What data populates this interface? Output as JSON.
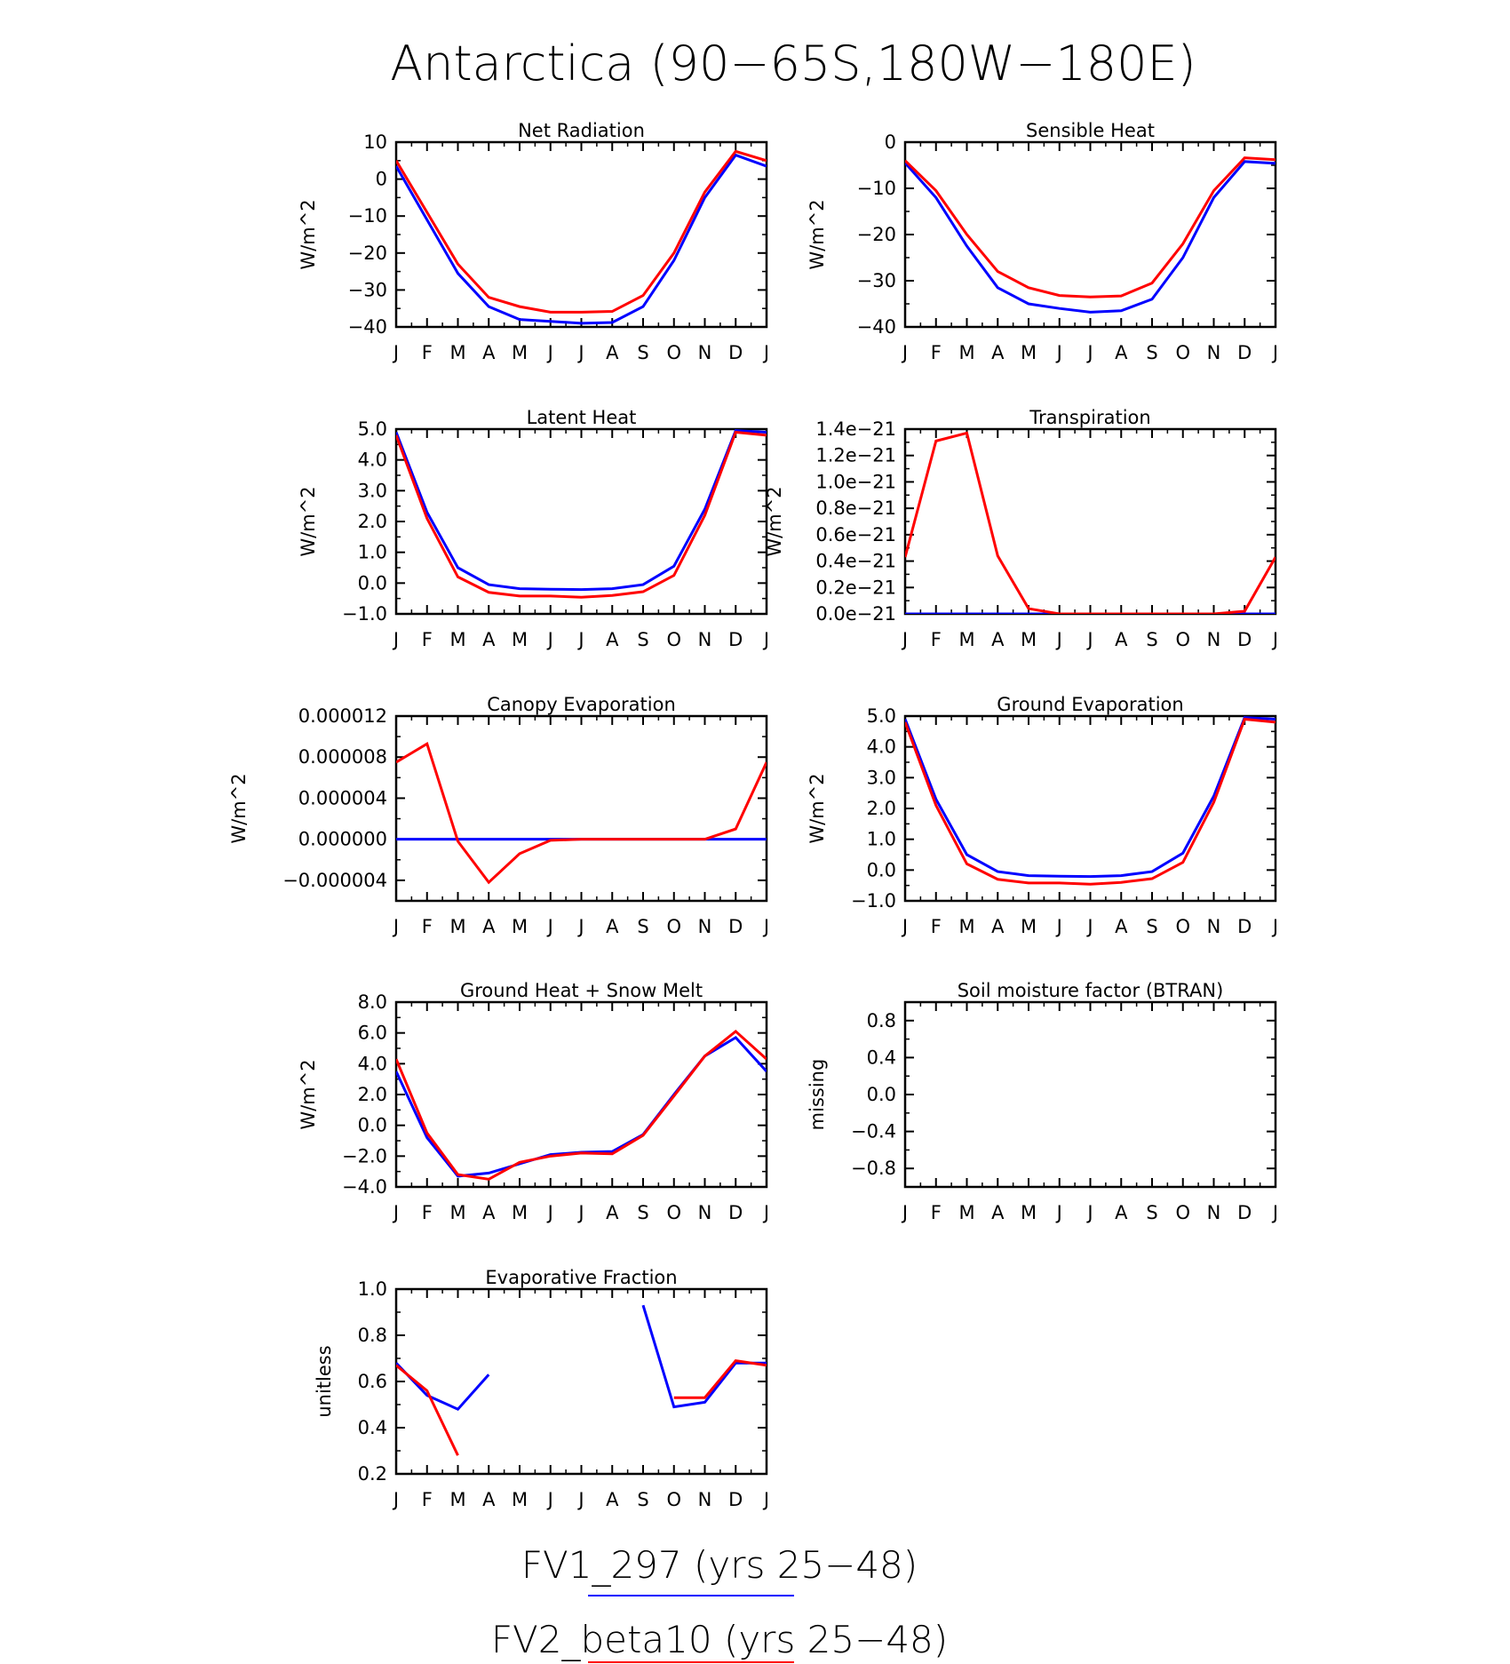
{
  "title": "Antarctica (90−65S,180W−180E)",
  "months": [
    "J",
    "F",
    "M",
    "A",
    "M",
    "J",
    "J",
    "A",
    "S",
    "O",
    "N",
    "D",
    "J"
  ],
  "colors": {
    "fv1_297": "#0000ff",
    "fv2_beta10": "#ff0000"
  },
  "legend": [
    {
      "label": "FV1_297 (yrs 25−48)",
      "color": "#0000ff"
    },
    {
      "label": "FV2_beta10 (yrs 25−48)",
      "color": "#ff0000"
    }
  ],
  "chart_data": [
    {
      "type": "line",
      "title": "Net Radiation",
      "ylabel": "W/m^2",
      "ylim": [
        -40,
        10
      ],
      "yticks": [
        10,
        0,
        -10,
        -20,
        -30,
        -40
      ],
      "ytick_labels": [
        "10",
        "0",
        "−10",
        "−20",
        "−30",
        "−40"
      ],
      "series": [
        {
          "color": "#0000ff",
          "values": [
            3.5,
            -11,
            -25.5,
            -34.5,
            -38,
            -38.5,
            -39,
            -38.8,
            -34.5,
            -22,
            -5,
            6.5,
            3.5
          ]
        },
        {
          "color": "#ff0000",
          "values": [
            5,
            -9,
            -23,
            -32,
            -34.5,
            -36,
            -36,
            -35.8,
            -31.5,
            -20,
            -3.5,
            7.5,
            5
          ]
        }
      ]
    },
    {
      "type": "line",
      "title": "Sensible Heat",
      "ylabel": "W/m^2",
      "ylim": [
        -40,
        0
      ],
      "yticks": [
        0,
        -10,
        -20,
        -30,
        -40
      ],
      "ytick_labels": [
        "0",
        "−10",
        "−20",
        "−30",
        "−40"
      ],
      "series": [
        {
          "color": "#0000ff",
          "values": [
            -4.5,
            -12,
            -22.5,
            -31.5,
            -35,
            -36,
            -36.8,
            -36.5,
            -34,
            -25,
            -12,
            -4.2,
            -4.6
          ]
        },
        {
          "color": "#ff0000",
          "values": [
            -4,
            -10.5,
            -20,
            -28,
            -31.5,
            -33.2,
            -33.5,
            -33.3,
            -30.5,
            -22,
            -10.5,
            -3.4,
            -3.8
          ]
        }
      ]
    },
    {
      "type": "line",
      "title": "Latent Heat",
      "ylabel": "W/m^2",
      "ylim": [
        -1,
        5
      ],
      "yticks": [
        5,
        4,
        3,
        2,
        1,
        0,
        -1
      ],
      "ytick_labels": [
        "5.0",
        "4.0",
        "3.0",
        "2.0",
        "1.0",
        "0.0",
        "−1.0"
      ],
      "series": [
        {
          "color": "#0000ff",
          "values": [
            4.9,
            2.3,
            0.5,
            -0.05,
            -0.18,
            -0.2,
            -0.21,
            -0.18,
            -0.05,
            0.55,
            2.4,
            4.95,
            4.9
          ]
        },
        {
          "color": "#ff0000",
          "values": [
            4.8,
            2.1,
            0.2,
            -0.3,
            -0.42,
            -0.42,
            -0.46,
            -0.4,
            -0.28,
            0.25,
            2.2,
            4.9,
            4.8
          ]
        }
      ]
    },
    {
      "type": "line",
      "title": "Transpiration",
      "ylabel": "W/m^2",
      "ylim": [
        0,
        1.4
      ],
      "yticks": [
        1.4,
        1.2,
        1.0,
        0.8,
        0.6,
        0.4,
        0.2,
        0.0
      ],
      "ytick_labels": [
        "1.4e−21",
        "1.2e−21",
        "1.0e−21",
        "0.8e−21",
        "0.6e−21",
        "0.4e−21",
        "0.2e−21",
        "0.0e−21"
      ],
      "series": [
        {
          "color": "#0000ff",
          "values": [
            0,
            0,
            0,
            0,
            0,
            0,
            0,
            0,
            0,
            0,
            0,
            0,
            0
          ]
        },
        {
          "color": "#ff0000",
          "values": [
            0.43,
            1.31,
            1.37,
            0.44,
            0.04,
            0.0,
            0.0,
            0.0,
            0.0,
            0.0,
            0.0,
            0.02,
            0.43
          ]
        }
      ]
    },
    {
      "type": "line",
      "title": "Canopy Evaporation",
      "ylabel": "W/m^2",
      "ylim": [
        -6e-06,
        1.2e-05
      ],
      "yticks": [
        1.2e-05,
        8e-06,
        4e-06,
        0.0,
        -4e-06
      ],
      "ytick_labels": [
        "0.000012",
        "0.000008",
        "0.000004",
        "0.000000",
        "−0.000004"
      ],
      "series": [
        {
          "color": "#0000ff",
          "values": [
            0,
            0,
            0,
            0,
            0,
            0,
            0,
            0,
            0,
            0,
            0,
            0,
            0
          ]
        },
        {
          "color": "#ff0000",
          "values": [
            7.5e-06,
            9.3e-06,
            -2e-07,
            -4.2e-06,
            -1.4e-06,
            -1e-07,
            0.0,
            0.0,
            0.0,
            0.0,
            0.0,
            1e-06,
            7.5e-06
          ]
        }
      ]
    },
    {
      "type": "line",
      "title": "Ground Evaporation",
      "ylabel": "W/m^2",
      "ylim": [
        -1,
        5
      ],
      "yticks": [
        5,
        4,
        3,
        2,
        1,
        0,
        -1
      ],
      "ytick_labels": [
        "5.0",
        "4.0",
        "3.0",
        "2.0",
        "1.0",
        "0.0",
        "−1.0"
      ],
      "series": [
        {
          "color": "#0000ff",
          "values": [
            4.9,
            2.3,
            0.5,
            -0.05,
            -0.18,
            -0.2,
            -0.21,
            -0.18,
            -0.05,
            0.55,
            2.4,
            4.95,
            4.9
          ]
        },
        {
          "color": "#ff0000",
          "values": [
            4.8,
            2.1,
            0.2,
            -0.3,
            -0.42,
            -0.42,
            -0.46,
            -0.4,
            -0.28,
            0.25,
            2.2,
            4.9,
            4.8
          ]
        }
      ]
    },
    {
      "type": "line",
      "title": "Ground Heat + Snow Melt",
      "ylabel": "W/m^2",
      "ylim": [
        -4,
        8
      ],
      "yticks": [
        8,
        6,
        4,
        2,
        0,
        -2,
        -4
      ],
      "ytick_labels": [
        "8.0",
        "6.0",
        "4.0",
        "2.0",
        "0.0",
        "−2.0",
        "−4.0"
      ],
      "series": [
        {
          "color": "#0000ff",
          "values": [
            3.5,
            -0.8,
            -3.3,
            -3.1,
            -2.5,
            -1.9,
            -1.75,
            -1.7,
            -0.6,
            2.0,
            4.5,
            5.7,
            3.5
          ]
        },
        {
          "color": "#ff0000",
          "values": [
            4.3,
            -0.5,
            -3.2,
            -3.5,
            -2.4,
            -2.0,
            -1.8,
            -1.85,
            -0.65,
            1.9,
            4.5,
            6.1,
            4.3
          ]
        }
      ]
    },
    {
      "type": "line",
      "title": "Soil moisture factor (BTRAN)",
      "ylabel": "missing",
      "ylim": [
        -1,
        1
      ],
      "yticks": [
        0.8,
        0.4,
        0.0,
        -0.4,
        -0.8
      ],
      "ytick_labels": [
        "0.8",
        "0.4",
        "0.0",
        "−0.4",
        "−0.8"
      ],
      "series": []
    },
    {
      "type": "line",
      "title": "Evaporative Fraction",
      "ylabel": "unitless",
      "ylim": [
        0.2,
        1.0
      ],
      "yticks": [
        1.0,
        0.8,
        0.6,
        0.4,
        0.2
      ],
      "ytick_labels": [
        "1.0",
        "0.8",
        "0.6",
        "0.4",
        "0.2"
      ],
      "series": [
        {
          "color": "#0000ff",
          "values": [
            0.68,
            0.54,
            0.48,
            0.63,
            null,
            null,
            null,
            null,
            0.93,
            0.49,
            0.51,
            0.68,
            0.68
          ]
        },
        {
          "color": "#ff0000",
          "values": [
            0.67,
            0.56,
            0.28,
            null,
            null,
            null,
            null,
            null,
            null,
            0.53,
            0.53,
            0.69,
            0.67
          ]
        }
      ]
    }
  ]
}
